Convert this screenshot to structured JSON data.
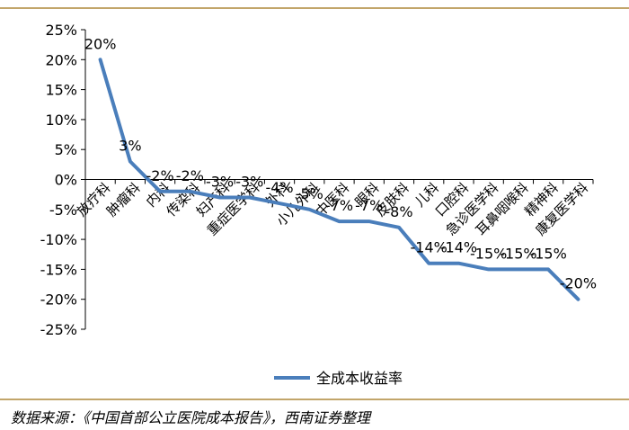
{
  "colors": {
    "line": "#4a7ebb",
    "axis": "#000000",
    "rule": "#c2a56a"
  },
  "chart_data": {
    "type": "line",
    "categories": [
      "放疗科",
      "肿瘤科",
      "内科",
      "传染科",
      "妇产科",
      "重症医学科",
      "外科",
      "小儿外科",
      "中医科",
      "眼科",
      "皮肤科",
      "儿科",
      "口腔科",
      "急诊医学科",
      "耳鼻咽喉科",
      "精神科",
      "康复医学科"
    ],
    "series": [
      {
        "name": "全成本收益率",
        "values": [
          20,
          3,
          -2,
          -2,
          -3,
          -3,
          -4,
          -5,
          -7,
          -7,
          -8,
          -14,
          -14,
          -15,
          -15,
          -15,
          -20
        ]
      }
    ],
    "data_labels": [
      "20%",
      "3%",
      "-2%",
      "-2%",
      "-3%",
      "-3%",
      "-4%",
      "-5%",
      "-7%",
      "-7%",
      "-8%",
      "-14%",
      "-14%",
      "-15%",
      "-15%",
      "-15%",
      "-20%"
    ],
    "y_ticks": [
      25,
      20,
      15,
      10,
      5,
      0,
      -5,
      -10,
      -15,
      -20,
      -25
    ],
    "y_tick_labels": [
      "25%",
      "20%",
      "15%",
      "10%",
      "5%",
      "0%",
      "-5%",
      "-10%",
      "-15%",
      "-20%",
      "-25%"
    ],
    "ylim": [
      -25,
      25
    ],
    "grid": false,
    "legend_position": "bottom"
  },
  "source_text": "数据来源：《中国首部公立医院成本报告》，西南证券整理"
}
